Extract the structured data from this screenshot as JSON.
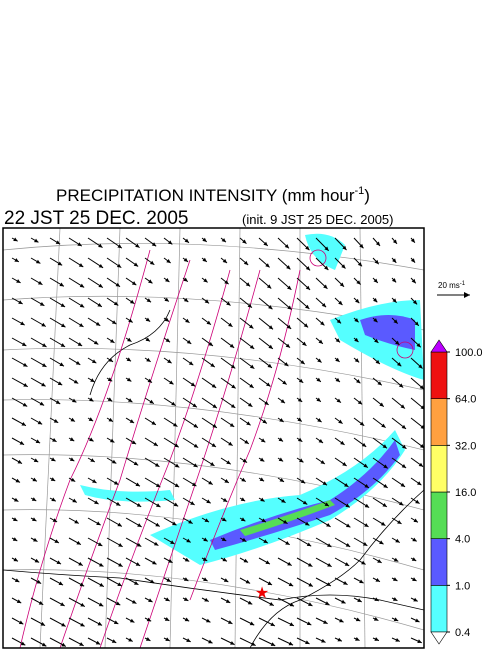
{
  "title": {
    "line1": "PRECIPITATION INTENSITY (mm hour",
    "line1_exponent": "-1",
    "line1_end": ")",
    "valid_time": "22 JST 25 DEC. 2005",
    "init_time": "(init. 9 JST 25 DEC. 2005)"
  },
  "scale_arrow": {
    "label": "20 ms",
    "exponent": "-1"
  },
  "legend": {
    "levels": [
      {
        "value": 0.4,
        "label": "0.4"
      },
      {
        "value": 1,
        "label": "1.0"
      },
      {
        "value": 4,
        "label": "4.0"
      },
      {
        "value": 16,
        "label": "16.0"
      },
      {
        "value": 32,
        "label": "32.0"
      },
      {
        "value": 64,
        "label": "64.0"
      },
      {
        "value": 100,
        "label": "100.0"
      }
    ],
    "colors": [
      "#55ffff",
      "#5a5aff",
      "#55dd55",
      "#ffff66",
      "#ffa040",
      "#ee1111"
    ],
    "under_color": "#ffffff",
    "over_color": "#bb00ff"
  }
}
